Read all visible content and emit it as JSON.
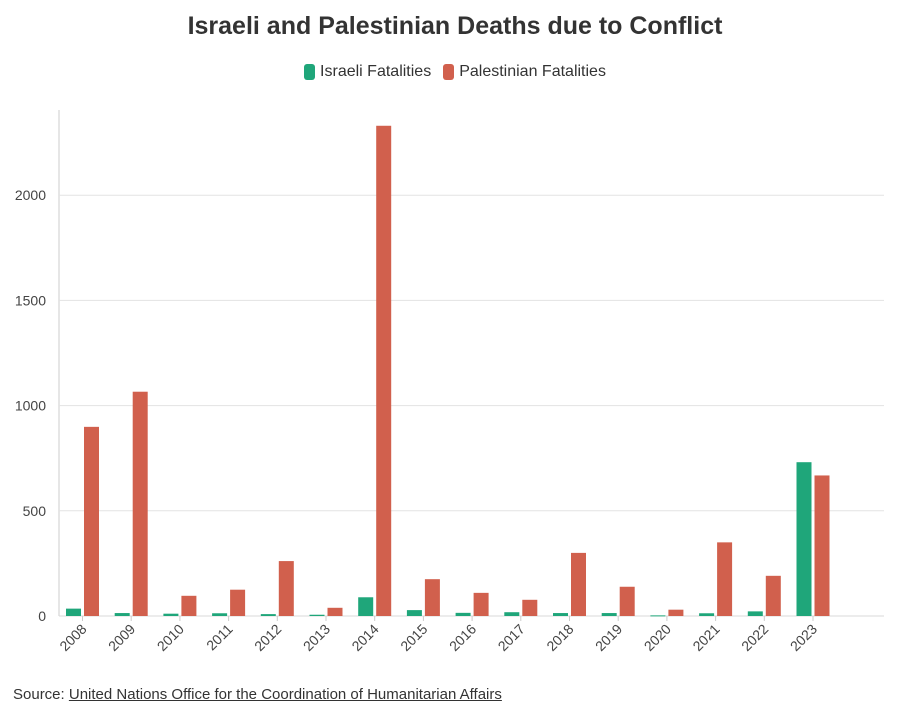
{
  "chart_data": {
    "type": "bar",
    "title": "Israeli and Palestinian Deaths due to Conflict",
    "categories": [
      "2008",
      "2009",
      "2010",
      "2011",
      "2012",
      "2013",
      "2014",
      "2015",
      "2016",
      "2017",
      "2018",
      "2019",
      "2020",
      "2021",
      "2022",
      "2023"
    ],
    "series": [
      {
        "name": "Israeli Fatalities",
        "color": "#1fa67a",
        "values": [
          35,
          14,
          11,
          13,
          9,
          6,
          89,
          28,
          15,
          18,
          14,
          14,
          3,
          13,
          22,
          731
        ]
      },
      {
        "name": "Palestinian Fatalities",
        "color": "#d1604d",
        "values": [
          899,
          1066,
          96,
          125,
          261,
          39,
          2330,
          175,
          110,
          77,
          300,
          139,
          30,
          350,
          191,
          668
        ]
      }
    ],
    "xlabel": "",
    "ylabel": "",
    "ylim": [
      0,
      2400
    ],
    "yticks": [
      0,
      500,
      1000,
      1500,
      2000
    ],
    "legend_position": "top-center",
    "grid": true
  },
  "source": {
    "label": "Source:",
    "link_text": "United Nations Office for the Coordination of Humanitarian Affairs"
  }
}
